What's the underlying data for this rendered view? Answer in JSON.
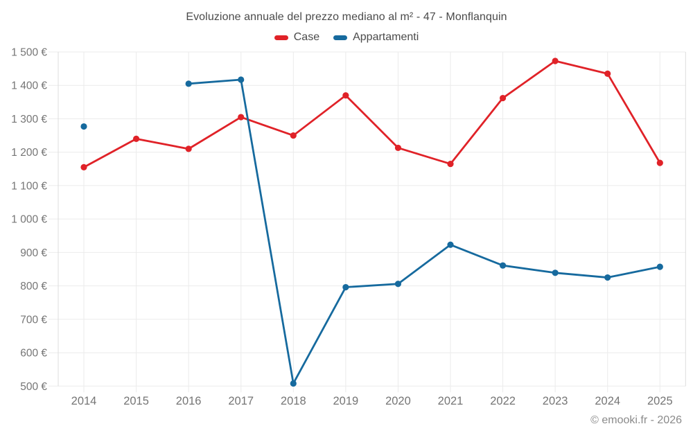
{
  "title": "Evoluzione annuale del prezzo mediano al m² - 47 - Monflanquin",
  "footer": "© emooki.fr - 2026",
  "chart_data": {
    "type": "line",
    "categories": [
      "2014",
      "2015",
      "2016",
      "2017",
      "2018",
      "2019",
      "2020",
      "2021",
      "2022",
      "2023",
      "2024",
      "2025"
    ],
    "series": [
      {
        "name": "Case",
        "color": "#e02228",
        "values": [
          1155,
          1240,
          1210,
          1305,
          1250,
          1370,
          1213,
          1165,
          1362,
          1473,
          1435,
          1168
        ]
      },
      {
        "name": "Appartamenti",
        "color": "#166a9e",
        "values": [
          1277,
          null,
          1405,
          1417,
          508,
          796,
          806,
          923,
          861,
          839,
          825,
          857
        ]
      }
    ],
    "ylim": [
      500,
      1500
    ],
    "y_tick_step": 100,
    "y_tick_labels": [
      "500 €",
      "600 €",
      "700 €",
      "800 €",
      "900 €",
      "1 000 €",
      "1 100 €",
      "1 200 €",
      "1 300 €",
      "1 400 €",
      "1 500 €"
    ],
    "xlabel": "",
    "ylabel": "",
    "grid": true,
    "legend_position": "top"
  },
  "colors": {
    "grid": "#ebebeb",
    "axis_boundary": "#dcdcdc",
    "tick": "#d9d9d9",
    "tick_text": "#757575",
    "title_text": "#4a4a4a",
    "footer_text": "#8a8a8a"
  }
}
